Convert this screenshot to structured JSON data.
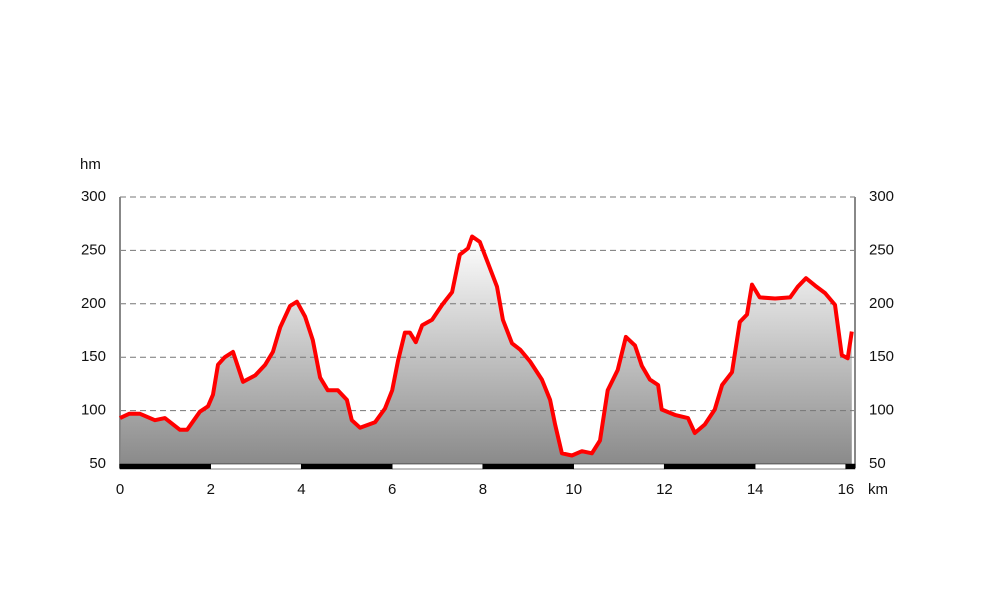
{
  "chart_data": {
    "type": "area",
    "y_label": "hm",
    "x_label": "km",
    "x": [
      0,
      0.2,
      0.44,
      0.77,
      0.99,
      1.32,
      1.48,
      1.76,
      1.94,
      2.05,
      2.16,
      2.31,
      2.49,
      2.71,
      2.98,
      3.2,
      3.37,
      3.53,
      3.75,
      3.9,
      4.08,
      4.25,
      4.41,
      4.58,
      4.8,
      5.0,
      5.11,
      5.29,
      5.62,
      5.84,
      6.0,
      6.13,
      6.28,
      6.39,
      6.52,
      6.66,
      6.88,
      7.1,
      7.32,
      7.49,
      7.67,
      7.76,
      7.93,
      8.11,
      8.31,
      8.44,
      8.64,
      8.82,
      9.04,
      9.3,
      9.48,
      9.59,
      9.74,
      9.96,
      10.18,
      10.4,
      10.58,
      10.75,
      10.97,
      11.15,
      11.35,
      11.5,
      11.68,
      11.86,
      11.94,
      12.23,
      12.52,
      12.67,
      12.89,
      13.11,
      13.27,
      13.49,
      13.66,
      13.82,
      13.93,
      14.1,
      14.44,
      14.77,
      14.94,
      15.12,
      15.32,
      15.54,
      15.76,
      15.91,
      16.04,
      16.13
    ],
    "values": [
      93,
      97,
      97,
      91,
      93,
      82,
      82,
      99,
      104,
      115,
      143,
      150,
      155,
      127,
      133,
      143,
      155,
      178,
      198,
      202,
      188,
      166,
      131,
      119,
      119,
      110,
      91,
      84,
      89,
      102,
      119,
      147,
      173,
      173,
      164,
      180,
      185,
      199,
      211,
      246,
      252,
      263,
      258,
      238,
      216,
      185,
      163,
      157,
      146,
      129,
      110,
      87,
      60,
      58,
      62,
      60,
      72,
      119,
      138,
      169,
      161,
      142,
      129,
      124,
      101,
      96,
      93,
      79,
      87,
      101,
      124,
      136,
      183,
      190,
      218,
      206,
      205,
      206,
      216,
      224,
      217,
      210,
      199,
      152,
      149,
      174
    ],
    "color": "#ff0000",
    "xlim": [
      0,
      16.2
    ],
    "xticks": [
      0,
      2,
      4,
      6,
      8,
      10,
      12,
      14,
      16
    ],
    "ylim": [
      50,
      300
    ],
    "yticks": [
      50,
      100,
      150,
      200,
      250,
      300
    ],
    "grid": true
  }
}
